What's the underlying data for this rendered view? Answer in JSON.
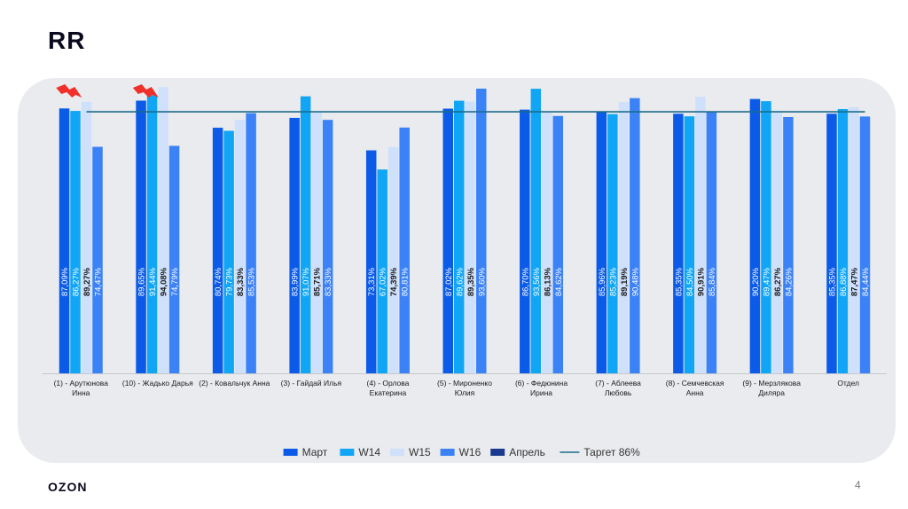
{
  "slide": {
    "title": "RR",
    "logo": "OZON",
    "page_number": "4"
  },
  "colors": {
    "mart": "#0b5be8",
    "w14": "#10a6f5",
    "w15": "#cfe0fb",
    "w16": "#3b82f6",
    "april": "#1b3a8f",
    "target": "#1b6d8a",
    "alert": "#f0302a",
    "panel": "#e9ebee"
  },
  "chart_data": {
    "type": "bar",
    "ylim": [
      0,
      100
    ],
    "categories": [
      [
        "(1) - Арутюнова",
        "Инна"
      ],
      [
        "(10) - Жадько Дарья"
      ],
      [
        "(2) - Ковальчук Анна"
      ],
      [
        "(3) - Гайдай Илья"
      ],
      [
        "(4) - Орлова",
        "Екатерина"
      ],
      [
        "(5) - Мироненко",
        "Юлия"
      ],
      [
        "(6) - Федюнина",
        "Ирина"
      ],
      [
        "(7) - Аблеева",
        "Любовь"
      ],
      [
        "(8) - Семчевская",
        "Анна"
      ],
      [
        "(9) - Мерзлякова",
        "Диляра"
      ],
      [
        "Отдел"
      ]
    ],
    "series": [
      {
        "name": "Март",
        "key": "mart",
        "values": [
          87.09,
          89.65,
          80.74,
          83.99,
          73.31,
          87.02,
          86.7,
          85.96,
          85.35,
          90.2,
          85.35
        ],
        "labels": [
          "87,09%",
          "89,65%",
          "80,74%",
          "83,99%",
          "73,31%",
          "87,02%",
          "86,70%",
          "85,96%",
          "85,35%",
          "90,20%",
          "85,35%"
        ]
      },
      {
        "name": "W14",
        "key": "w14",
        "values": [
          86.27,
          91.44,
          79.73,
          91.07,
          67.02,
          89.62,
          93.56,
          85.23,
          84.5,
          89.47,
          86.88
        ],
        "labels": [
          "86,27%",
          "91,44%",
          "79,73%",
          "91,07%",
          "67,02%",
          "89,62%",
          "93,56%",
          "85,23%",
          "84,50%",
          "89,47%",
          "86,88%"
        ]
      },
      {
        "name": "W15",
        "key": "w15",
        "values": [
          89.27,
          94.08,
          83.33,
          85.71,
          74.39,
          89.35,
          86.13,
          89.19,
          90.91,
          86.27,
          87.47
        ],
        "labels": [
          "89,27%",
          "94,08%",
          "83,33%",
          "85,71%",
          "74,39%",
          "89,35%",
          "86,13%",
          "89,19%",
          "90,91%",
          "86,27%",
          "87,47%"
        ]
      },
      {
        "name": "W16",
        "key": "w16",
        "values": [
          74.47,
          74.79,
          85.53,
          83.33,
          80.81,
          93.6,
          84.62,
          90.48,
          85.84,
          84.26,
          84.44
        ],
        "labels": [
          "74,47%",
          "74,79%",
          "85,53%",
          "83,33%",
          "80,81%",
          "93,60%",
          "84,62%",
          "90,48%",
          "85,84%",
          "84,26%",
          "84,44%"
        ]
      }
    ],
    "legend": [
      {
        "label": "Март",
        "key": "mart",
        "kind": "box"
      },
      {
        "label": "W14",
        "key": "w14",
        "kind": "box"
      },
      {
        "label": "W15",
        "key": "w15",
        "kind": "box"
      },
      {
        "label": "W16",
        "key": "w16",
        "kind": "box"
      },
      {
        "label": "Апрель",
        "key": "april",
        "kind": "box"
      },
      {
        "label": "Таргет 86%",
        "key": "target",
        "kind": "line"
      }
    ],
    "target": {
      "label": "Таргет 86%",
      "value": 86
    },
    "alert_categories": [
      0,
      1
    ]
  }
}
